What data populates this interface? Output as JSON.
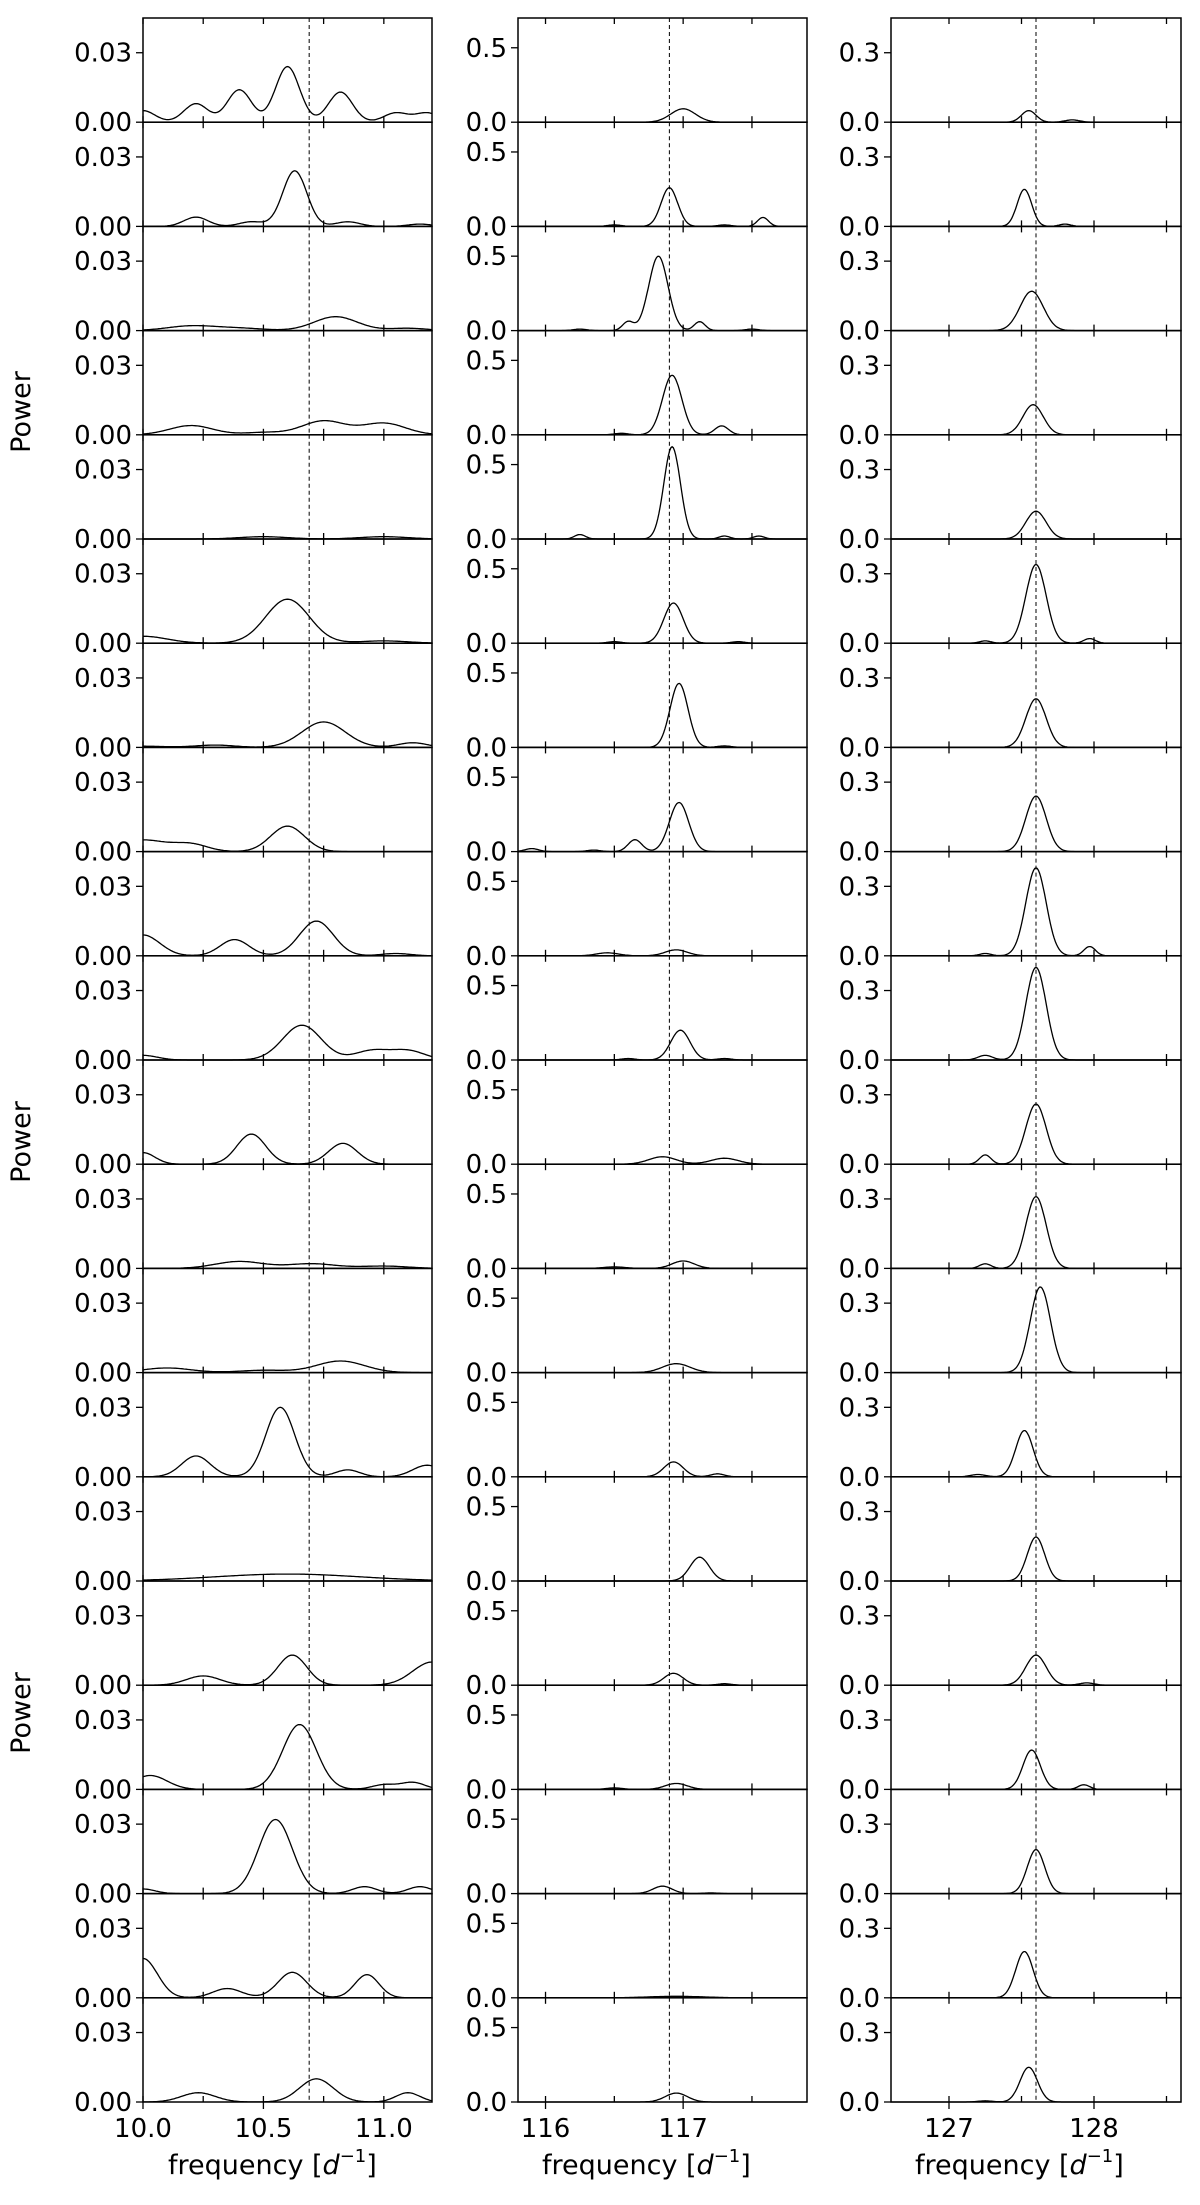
{
  "figure": {
    "ylabel": "Power",
    "xlabel_text": "frequency [",
    "xlabel_math": "d",
    "xlabel_sup": "−1",
    "xlabel_close": "]"
  },
  "chart_data": [
    {
      "type": "line",
      "panel_column": 1,
      "ylabel": "Power",
      "xlabel": "frequency [d^-1]",
      "xlim": [
        10.0,
        11.2
      ],
      "ylim": [
        0.0,
        0.045
      ],
      "yticks": [
        "0.00",
        "0.03"
      ],
      "ytick_values": [
        0.0,
        0.03
      ],
      "xticks": [
        "10.0",
        "10.5",
        "11.0"
      ],
      "xtick_values": [
        10.0,
        10.5,
        11.0
      ],
      "minor_xticks": [
        10.25,
        10.75
      ],
      "reference_line": 10.69,
      "series": [
        {
          "peaks": [
            [
              10.0,
              0.005,
              0.05
            ],
            [
              10.22,
              0.008,
              0.05
            ],
            [
              10.4,
              0.014,
              0.05
            ],
            [
              10.6,
              0.024,
              0.05
            ],
            [
              10.82,
              0.013,
              0.05
            ],
            [
              11.05,
              0.004,
              0.05
            ],
            [
              11.18,
              0.004,
              0.05
            ]
          ]
        },
        {
          "peaks": [
            [
              10.22,
              0.004,
              0.05
            ],
            [
              10.45,
              0.002,
              0.05
            ],
            [
              10.63,
              0.024,
              0.05
            ],
            [
              10.85,
              0.002,
              0.05
            ],
            [
              11.15,
              0.001,
              0.05
            ]
          ]
        },
        {
          "peaks": [
            [
              10.2,
              0.002,
              0.1
            ],
            [
              10.4,
              0.001,
              0.1
            ],
            [
              10.8,
              0.006,
              0.09
            ],
            [
              11.1,
              0.001,
              0.08
            ]
          ]
        },
        {
          "peaks": [
            [
              10.2,
              0.004,
              0.09
            ],
            [
              10.5,
              0.001,
              0.08
            ],
            [
              10.75,
              0.006,
              0.09
            ],
            [
              11.0,
              0.005,
              0.09
            ]
          ]
        },
        {
          "peaks": [
            [
              10.5,
              0.001,
              0.1
            ],
            [
              11.0,
              0.001,
              0.1
            ]
          ]
        },
        {
          "peaks": [
            [
              10.0,
              0.003,
              0.1
            ],
            [
              10.6,
              0.019,
              0.09
            ],
            [
              11.0,
              0.001,
              0.1
            ]
          ]
        },
        {
          "peaks": [
            [
              10.0,
              0.0005,
              0.1
            ],
            [
              10.3,
              0.001,
              0.08
            ],
            [
              10.75,
              0.011,
              0.09
            ],
            [
              11.12,
              0.002,
              0.06
            ]
          ]
        },
        {
          "peaks": [
            [
              10.0,
              0.005,
              0.1
            ],
            [
              10.2,
              0.003,
              0.07
            ],
            [
              10.6,
              0.011,
              0.07
            ]
          ]
        },
        {
          "peaks": [
            [
              10.0,
              0.009,
              0.07
            ],
            [
              10.38,
              0.007,
              0.06
            ],
            [
              10.72,
              0.015,
              0.07
            ],
            [
              11.05,
              0.001,
              0.06
            ]
          ]
        },
        {
          "peaks": [
            [
              10.0,
              0.002,
              0.06
            ],
            [
              10.66,
              0.015,
              0.08
            ],
            [
              10.95,
              0.004,
              0.07
            ],
            [
              11.1,
              0.004,
              0.07
            ]
          ]
        },
        {
          "peaks": [
            [
              10.0,
              0.005,
              0.05
            ],
            [
              10.45,
              0.013,
              0.06
            ],
            [
              10.83,
              0.009,
              0.06
            ]
          ]
        },
        {
          "peaks": [
            [
              10.4,
              0.003,
              0.1
            ],
            [
              10.7,
              0.002,
              0.1
            ],
            [
              11.0,
              0.001,
              0.1
            ]
          ]
        },
        {
          "peaks": [
            [
              10.1,
              0.002,
              0.1
            ],
            [
              10.5,
              0.001,
              0.1
            ],
            [
              10.82,
              0.005,
              0.1
            ]
          ]
        },
        {
          "peaks": [
            [
              10.22,
              0.009,
              0.06
            ],
            [
              10.57,
              0.03,
              0.06
            ],
            [
              10.85,
              0.003,
              0.05
            ],
            [
              11.18,
              0.005,
              0.06
            ]
          ]
        },
        {
          "peaks": [
            [
              10.6,
              0.003,
              0.3
            ]
          ]
        },
        {
          "peaks": [
            [
              10.25,
              0.004,
              0.07
            ],
            [
              10.62,
              0.013,
              0.06
            ],
            [
              11.2,
              0.01,
              0.08
            ]
          ]
        },
        {
          "peaks": [
            [
              10.03,
              0.006,
              0.07
            ],
            [
              10.65,
              0.028,
              0.07
            ],
            [
              11.0,
              0.002,
              0.05
            ],
            [
              11.12,
              0.003,
              0.05
            ]
          ]
        },
        {
          "peaks": [
            [
              10.0,
              0.002,
              0.05
            ],
            [
              10.55,
              0.032,
              0.07
            ],
            [
              10.92,
              0.003,
              0.05
            ],
            [
              11.15,
              0.003,
              0.05
            ]
          ]
        },
        {
          "peaks": [
            [
              10.0,
              0.017,
              0.06
            ],
            [
              10.35,
              0.004,
              0.06
            ],
            [
              10.62,
              0.011,
              0.06
            ],
            [
              10.93,
              0.01,
              0.05
            ]
          ]
        },
        {
          "peaks": [
            [
              10.23,
              0.004,
              0.07
            ],
            [
              10.72,
              0.01,
              0.07
            ],
            [
              11.1,
              0.004,
              0.05
            ]
          ]
        }
      ]
    },
    {
      "type": "line",
      "panel_column": 2,
      "xlabel": "frequency [d^-1]",
      "xlim": [
        115.8,
        117.9
      ],
      "ylim": [
        0.0,
        0.7
      ],
      "yticks": [
        "0.0",
        "0.5"
      ],
      "ytick_values": [
        0.0,
        0.5
      ],
      "xticks": [
        "116",
        "117"
      ],
      "xtick_values": [
        116.0,
        117.0
      ],
      "minor_xticks": [
        116.5,
        117.5
      ],
      "reference_line": 116.9,
      "series": [
        {
          "peaks": [
            [
              117.0,
              0.09,
              0.09
            ]
          ]
        },
        {
          "peaks": [
            [
              116.9,
              0.26,
              0.06
            ],
            [
              117.58,
              0.06,
              0.04
            ],
            [
              116.5,
              0.01,
              0.05
            ],
            [
              117.3,
              0.01,
              0.05
            ]
          ]
        },
        {
          "peaks": [
            [
              116.82,
              0.5,
              0.07
            ],
            [
              116.6,
              0.06,
              0.04
            ],
            [
              117.12,
              0.06,
              0.04
            ],
            [
              116.25,
              0.01,
              0.05
            ],
            [
              117.5,
              0.01,
              0.05
            ]
          ]
        },
        {
          "peaks": [
            [
              116.92,
              0.4,
              0.07
            ],
            [
              117.28,
              0.06,
              0.05
            ],
            [
              116.55,
              0.01,
              0.05
            ]
          ]
        },
        {
          "peaks": [
            [
              116.92,
              0.62,
              0.06
            ],
            [
              116.25,
              0.03,
              0.04
            ],
            [
              117.3,
              0.02,
              0.04
            ],
            [
              117.55,
              0.02,
              0.04
            ]
          ]
        },
        {
          "peaks": [
            [
              116.93,
              0.27,
              0.07
            ],
            [
              116.5,
              0.01,
              0.05
            ],
            [
              117.4,
              0.01,
              0.05
            ]
          ]
        },
        {
          "peaks": [
            [
              116.97,
              0.43,
              0.065
            ],
            [
              117.3,
              0.01,
              0.05
            ]
          ]
        },
        {
          "peaks": [
            [
              116.97,
              0.33,
              0.07
            ],
            [
              116.65,
              0.08,
              0.05
            ],
            [
              115.9,
              0.02,
              0.05
            ],
            [
              116.35,
              0.01,
              0.05
            ]
          ]
        },
        {
          "peaks": [
            [
              116.45,
              0.02,
              0.08
            ],
            [
              116.95,
              0.04,
              0.08
            ]
          ]
        },
        {
          "peaks": [
            [
              116.98,
              0.2,
              0.07
            ],
            [
              116.6,
              0.01,
              0.05
            ],
            [
              117.3,
              0.01,
              0.05
            ]
          ]
        },
        {
          "peaks": [
            [
              116.85,
              0.05,
              0.1
            ],
            [
              117.3,
              0.04,
              0.1
            ]
          ]
        },
        {
          "peaks": [
            [
              117.0,
              0.05,
              0.08
            ],
            [
              116.5,
              0.01,
              0.08
            ]
          ]
        },
        {
          "peaks": [
            [
              116.95,
              0.06,
              0.1
            ]
          ]
        },
        {
          "peaks": [
            [
              116.93,
              0.1,
              0.07
            ],
            [
              117.25,
              0.02,
              0.05
            ]
          ]
        },
        {
          "peaks": [
            [
              117.12,
              0.16,
              0.07
            ]
          ]
        },
        {
          "peaks": [
            [
              116.93,
              0.08,
              0.07
            ],
            [
              117.3,
              0.01,
              0.05
            ]
          ]
        },
        {
          "peaks": [
            [
              116.95,
              0.04,
              0.08
            ],
            [
              116.5,
              0.01,
              0.06
            ]
          ]
        },
        {
          "peaks": [
            [
              116.85,
              0.05,
              0.07
            ],
            [
              117.2,
              0.005,
              0.05
            ]
          ]
        },
        {
          "peaks": [
            [
              116.95,
              0.01,
              0.2
            ]
          ]
        },
        {
          "peaks": [
            [
              116.95,
              0.06,
              0.08
            ]
          ]
        }
      ]
    },
    {
      "type": "line",
      "panel_column": 3,
      "xlabel": "frequency [d^-1]",
      "xlim": [
        126.6,
        128.6
      ],
      "ylim": [
        0.0,
        0.45
      ],
      "yticks": [
        "0.0",
        "0.3"
      ],
      "ytick_values": [
        0.0,
        0.3
      ],
      "xticks": [
        "127",
        "128"
      ],
      "xtick_values": [
        127.0,
        128.0
      ],
      "minor_xticks": [
        127.5,
        128.5
      ],
      "reference_line": 127.6,
      "series": [
        {
          "peaks": [
            [
              127.55,
              0.05,
              0.05
            ],
            [
              127.85,
              0.01,
              0.05
            ]
          ]
        },
        {
          "peaks": [
            [
              127.52,
              0.16,
              0.05
            ],
            [
              127.8,
              0.01,
              0.04
            ]
          ]
        },
        {
          "peaks": [
            [
              127.57,
              0.17,
              0.08
            ]
          ]
        },
        {
          "peaks": [
            [
              127.58,
              0.13,
              0.07
            ]
          ]
        },
        {
          "peaks": [
            [
              127.6,
              0.12,
              0.07
            ]
          ]
        },
        {
          "peaks": [
            [
              127.6,
              0.34,
              0.07
            ],
            [
              127.97,
              0.02,
              0.04
            ],
            [
              127.25,
              0.01,
              0.04
            ]
          ]
        },
        {
          "peaks": [
            [
              127.6,
              0.21,
              0.07
            ]
          ]
        },
        {
          "peaks": [
            [
              127.6,
              0.24,
              0.07
            ]
          ]
        },
        {
          "peaks": [
            [
              127.6,
              0.38,
              0.07
            ],
            [
              127.97,
              0.04,
              0.04
            ],
            [
              127.25,
              0.01,
              0.04
            ]
          ]
        },
        {
          "peaks": [
            [
              127.6,
              0.4,
              0.07
            ],
            [
              127.25,
              0.02,
              0.05
            ]
          ]
        },
        {
          "peaks": [
            [
              127.6,
              0.26,
              0.07
            ],
            [
              127.25,
              0.04,
              0.04
            ]
          ]
        },
        {
          "peaks": [
            [
              127.6,
              0.31,
              0.07
            ],
            [
              127.25,
              0.02,
              0.04
            ]
          ]
        },
        {
          "peaks": [
            [
              127.63,
              0.37,
              0.07
            ]
          ]
        },
        {
          "peaks": [
            [
              127.52,
              0.2,
              0.06
            ],
            [
              127.2,
              0.01,
              0.05
            ]
          ]
        },
        {
          "peaks": [
            [
              127.6,
              0.19,
              0.06
            ]
          ]
        },
        {
          "peaks": [
            [
              127.6,
              0.13,
              0.07
            ],
            [
              127.95,
              0.01,
              0.05
            ]
          ]
        },
        {
          "peaks": [
            [
              127.57,
              0.17,
              0.06
            ],
            [
              127.93,
              0.02,
              0.04
            ]
          ]
        },
        {
          "peaks": [
            [
              127.6,
              0.19,
              0.06
            ]
          ]
        },
        {
          "peaks": [
            [
              127.52,
              0.2,
              0.06
            ]
          ]
        },
        {
          "peaks": [
            [
              127.55,
              0.15,
              0.06
            ],
            [
              127.25,
              0.005,
              0.05
            ]
          ]
        }
      ]
    }
  ]
}
